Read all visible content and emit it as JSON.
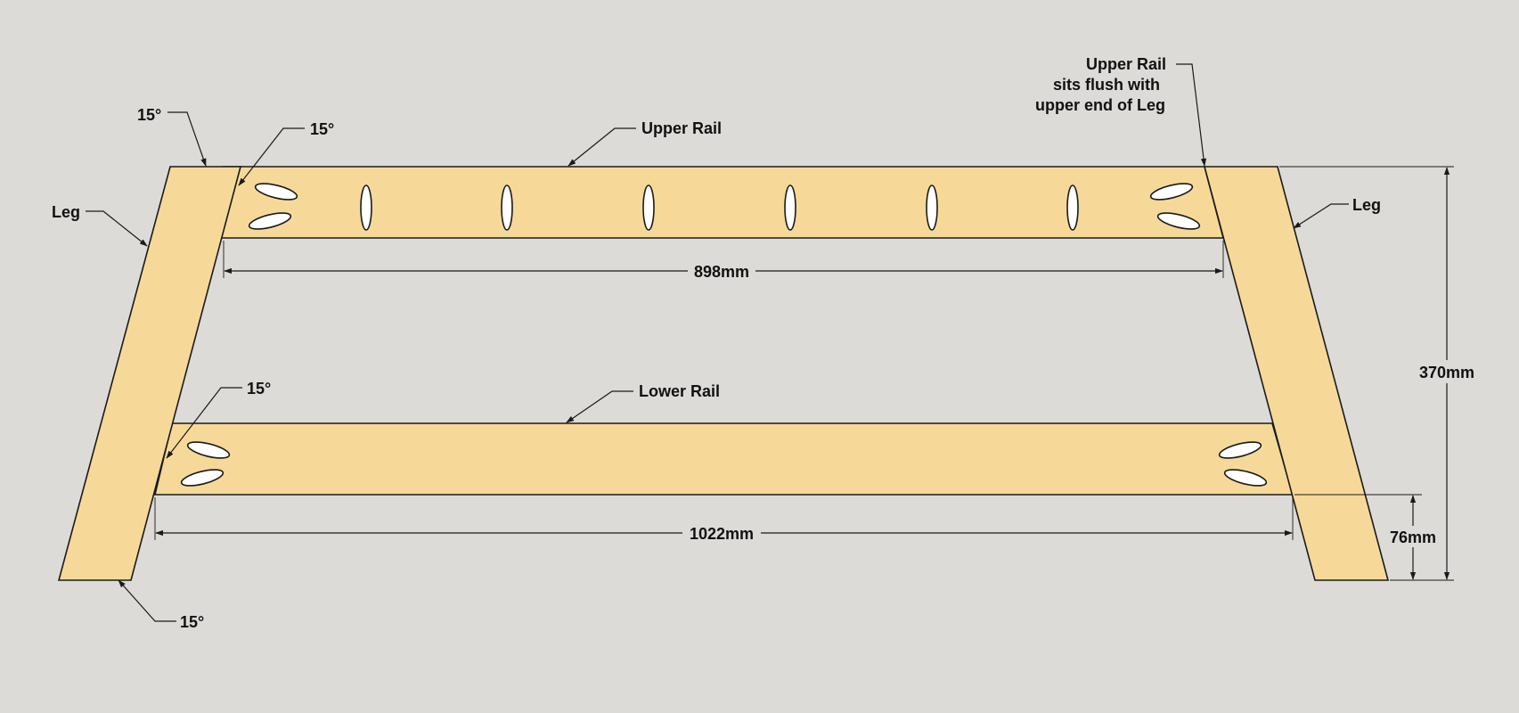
{
  "colors": {
    "background": "#dcdbd8",
    "wood": "#f6d998",
    "outline": "#1a1a1a",
    "pocket_hole": "#ffffff"
  },
  "labels": {
    "left_leg": "Leg",
    "right_leg": "Leg",
    "upper_rail": "Upper Rail",
    "lower_rail": "Lower Rail",
    "note_line1": "Upper Rail",
    "note_line2": "sits flush with",
    "note_line3": "upper end of Leg",
    "angle_top_left_outer": "15°",
    "angle_top_left_inner": "15°",
    "angle_lower_rail": "15°",
    "angle_bottom_left": "15°"
  },
  "dimensions": {
    "upper_rail_length": "898mm",
    "lower_rail_length": "1022mm",
    "overall_height": "370mm",
    "lower_rail_height": "76mm"
  }
}
